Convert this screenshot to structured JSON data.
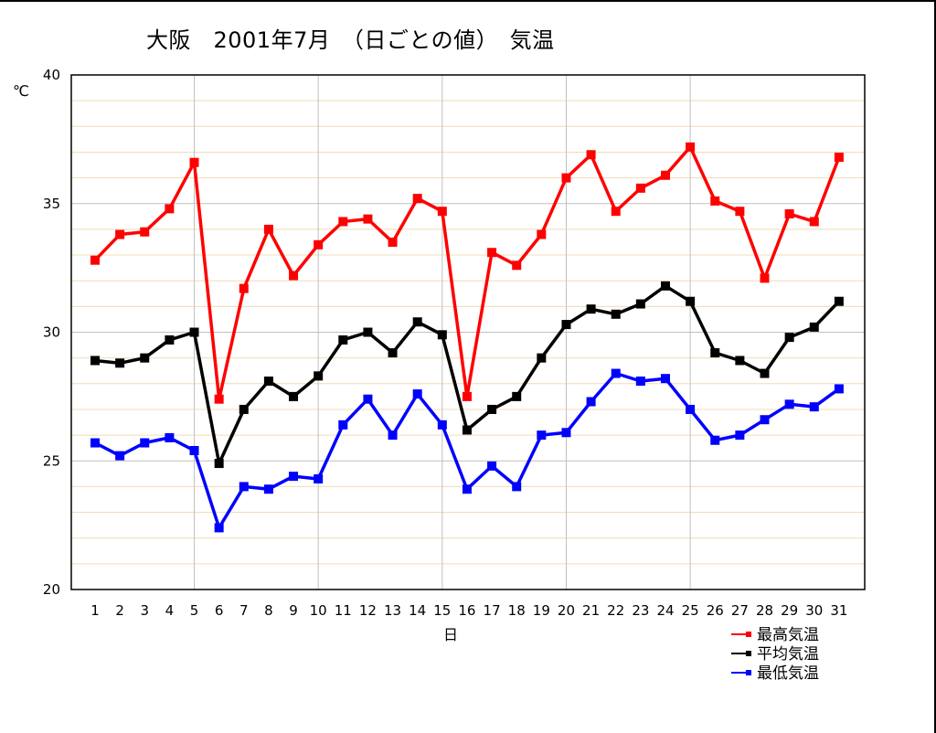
{
  "chart_data": {
    "type": "line",
    "title": "大阪　2001年7月　（日ごとの値）　気温",
    "xlabel": "日",
    "ylabel": "℃",
    "ylim": [
      20,
      40
    ],
    "yticks": [
      20,
      25,
      30,
      35,
      40
    ],
    "grid": true,
    "legend_position": "bottom-right",
    "x": [
      1,
      2,
      3,
      4,
      5,
      6,
      7,
      8,
      9,
      10,
      11,
      12,
      13,
      14,
      15,
      16,
      17,
      18,
      19,
      20,
      21,
      22,
      23,
      24,
      25,
      26,
      27,
      28,
      29,
      30,
      31
    ],
    "series": [
      {
        "name": "最高気温",
        "color": "#ff0000",
        "values": [
          32.8,
          33.8,
          33.9,
          34.8,
          36.6,
          27.4,
          31.7,
          34.0,
          32.2,
          33.4,
          34.3,
          34.4,
          33.5,
          35.2,
          34.7,
          27.5,
          33.1,
          32.6,
          33.8,
          36.0,
          36.9,
          34.7,
          35.6,
          36.1,
          37.2,
          35.1,
          34.7,
          32.1,
          34.6,
          34.3,
          36.8
        ]
      },
      {
        "name": "平均気温",
        "color": "#000000",
        "values": [
          28.9,
          28.8,
          29.0,
          29.7,
          30.0,
          24.9,
          27.0,
          28.1,
          27.5,
          28.3,
          29.7,
          30.0,
          29.2,
          30.4,
          29.9,
          26.2,
          27.0,
          27.5,
          29.0,
          30.3,
          30.9,
          30.7,
          31.1,
          31.8,
          31.2,
          29.2,
          28.9,
          28.4,
          29.8,
          30.2,
          31.2
        ]
      },
      {
        "name": "最低気温",
        "color": "#0000ff",
        "values": [
          25.7,
          25.2,
          25.7,
          25.9,
          25.4,
          22.4,
          24.0,
          23.9,
          24.4,
          24.3,
          26.4,
          27.4,
          26.0,
          27.6,
          26.4,
          23.9,
          24.8,
          24.0,
          26.0,
          26.1,
          27.3,
          28.4,
          28.1,
          28.2,
          27.0,
          25.8,
          26.0,
          26.6,
          27.2,
          27.1,
          27.8
        ]
      }
    ]
  }
}
